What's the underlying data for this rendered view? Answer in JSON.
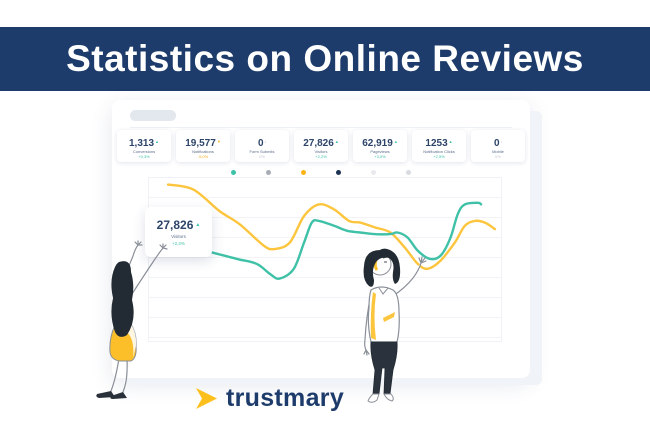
{
  "banner": {
    "title": "Statistics on Online Reviews",
    "bg_color": "#1e3c6b",
    "text_color": "#ffffff"
  },
  "logo": {
    "text": "trustmary",
    "icon": "arrow-right-icon",
    "icon_color": "#fcbf1b",
    "text_color": "#1e3c6b"
  },
  "dashboard": {
    "stats": [
      {
        "value": "1,313",
        "label": "Conversions",
        "change": "+0,3%",
        "trend": "up",
        "color": "#3fc1a7"
      },
      {
        "value": "19,577",
        "label": "Notifications",
        "change": "-5,0%",
        "trend": "down",
        "color": "#f5b01d"
      },
      {
        "value": "0",
        "label": "Form Submits",
        "change": "0%",
        "trend": "flat",
        "color": "#c3c9d2"
      },
      {
        "value": "27,826",
        "label": "Visitors",
        "change": "+2,2%",
        "trend": "up",
        "color": "#3fc1a7"
      },
      {
        "value": "62,919",
        "label": "Pageviews",
        "change": "+3,0%",
        "trend": "up",
        "color": "#3fc1a7"
      },
      {
        "value": "1253",
        "label": "Notification Clicks",
        "change": "+2,5%",
        "trend": "up",
        "color": "#3fc1a7"
      },
      {
        "value": "0",
        "label": "Mobile",
        "change": "0%",
        "trend": "flat",
        "color": "#c3c9d2"
      }
    ],
    "legend_dots": [
      "#3fc1a7",
      "#a7adb5",
      "#fbb418",
      "#1d3354",
      "#e8eaee",
      "#d7dbe0"
    ],
    "tooltip": {
      "value": "27,826",
      "label": "Visitors",
      "change": "+2,2%"
    }
  },
  "chart_data": {
    "type": "line",
    "title": "",
    "xlabel": "",
    "ylabel": "",
    "axes_labeled": false,
    "grid": "horizontal",
    "legend_position": "top",
    "note": "decorative dashboard line chart; y values are relative heights 0-100 read from pixels, x is percent across plot",
    "series": [
      {
        "name": "yellow-series",
        "color": "#fcc53d",
        "points": [
          [
            5.4,
            96
          ],
          [
            12.5,
            93
          ],
          [
            19.9,
            80
          ],
          [
            25.6,
            72
          ],
          [
            32.4,
            59
          ],
          [
            35.5,
            57
          ],
          [
            39.8,
            61
          ],
          [
            43.8,
            77
          ],
          [
            48.0,
            84
          ],
          [
            52.3,
            81
          ],
          [
            56.5,
            74
          ],
          [
            59.7,
            73
          ],
          [
            63.9,
            70
          ],
          [
            68.2,
            67
          ],
          [
            72.2,
            58
          ],
          [
            75.9,
            48
          ],
          [
            78.7,
            45
          ],
          [
            82.4,
            50
          ],
          [
            86.4,
            61
          ],
          [
            89.2,
            71
          ],
          [
            92.0,
            74
          ],
          [
            94.9,
            73
          ],
          [
            97.7,
            69
          ]
        ]
      },
      {
        "name": "teal-series",
        "color": "#3fc1a7",
        "points": [
          [
            17.6,
            55
          ],
          [
            24.7,
            51
          ],
          [
            30.4,
            48
          ],
          [
            34.1,
            42
          ],
          [
            36.9,
            39
          ],
          [
            40.9,
            45
          ],
          [
            43.8,
            61
          ],
          [
            46.0,
            73
          ],
          [
            48.0,
            74
          ],
          [
            52.3,
            71
          ],
          [
            56.0,
            68
          ],
          [
            59.7,
            67
          ],
          [
            63.6,
            66
          ],
          [
            68.2,
            66
          ],
          [
            70.2,
            67
          ],
          [
            73.0,
            64
          ],
          [
            75.9,
            56
          ],
          [
            79.3,
            51
          ],
          [
            82.4,
            53
          ],
          [
            85.2,
            64
          ],
          [
            87.2,
            78
          ],
          [
            89.2,
            84
          ],
          [
            92.9,
            85
          ],
          [
            93.8,
            84
          ]
        ]
      }
    ],
    "ylim": [
      0,
      100
    ]
  }
}
